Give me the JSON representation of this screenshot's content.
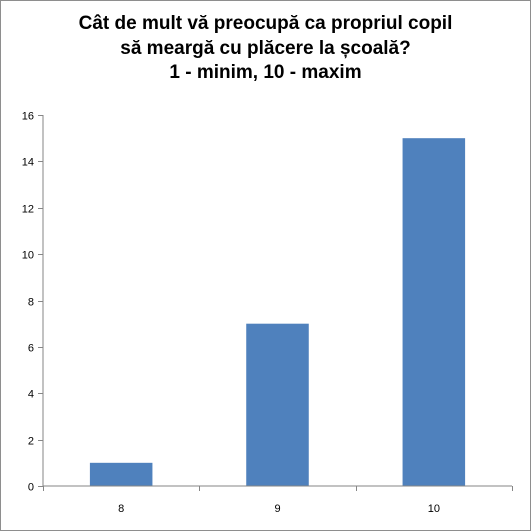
{
  "chart_data": {
    "type": "bar",
    "title_lines": [
      "Cât de mult vă preocupă ca propriul copil",
      "să meargă cu plăcere la școală?",
      "1 - minim, 10 - maxim"
    ],
    "categories": [
      "8",
      "9",
      "10"
    ],
    "values": [
      1,
      7,
      15
    ],
    "ylim": [
      0,
      16
    ],
    "yticks": [
      0,
      2,
      4,
      6,
      8,
      10,
      12,
      14,
      16
    ],
    "grid": false,
    "legend": "none",
    "bar_color": "#4f81bd",
    "axis_color": "#868686"
  }
}
